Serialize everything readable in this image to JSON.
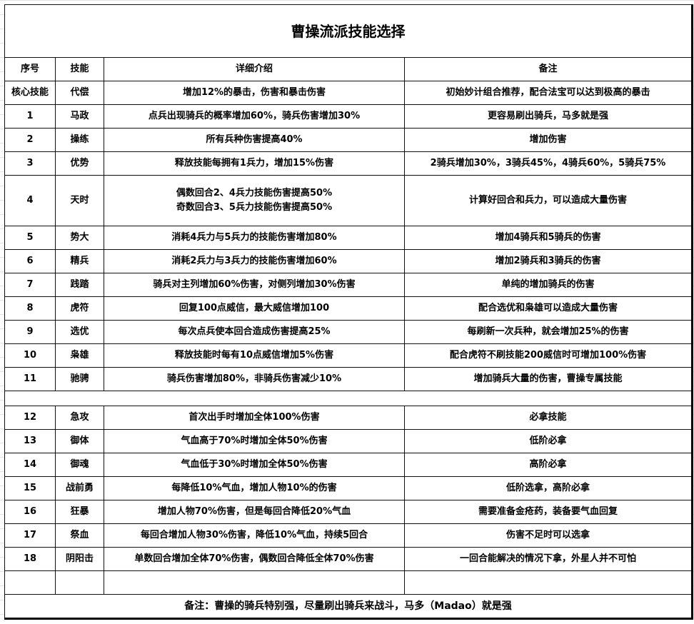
{
  "title": "曹操流派技能选择",
  "headers": [
    "序号",
    "技能",
    "详细介绍",
    "备注"
  ],
  "rows_a": [
    {
      "no": "核心技能",
      "skill": "代偿",
      "desc": "增加12%的暴击，伤害和暴击伤害",
      "note": "初始妙计组合推荐，配合法宝可以达到极高的暴击"
    },
    {
      "no": "1",
      "skill": "马政",
      "desc": "点兵出现骑兵的概率增加60%，骑兵伤害增加30%",
      "note": "更容易刷出骑兵，马多就是强"
    },
    {
      "no": "2",
      "skill": "操练",
      "desc": "所有兵种伤害提高40%",
      "note": "增加伤害"
    },
    {
      "no": "3",
      "skill": "优势",
      "desc": "释放技能每拥有1兵力，增加15%伤害",
      "note": "2骑兵增加30%，3骑兵45%，4骑兵60%，5骑兵75%"
    }
  ],
  "row_4": {
    "no": "4",
    "skill": "天时",
    "desc_line1": "偶数回合2、4兵力技能伤害提高50%",
    "desc_line2": "奇数回合3、5兵力技能伤害提高50%",
    "note": "计算好回合和兵力，可以造成大量伤害"
  },
  "rows_b": [
    {
      "no": "5",
      "skill": "势大",
      "desc": "消耗4兵力与5兵力的技能伤害增加80%",
      "note": "增加4骑兵和5骑兵的伤害"
    },
    {
      "no": "6",
      "skill": "精兵",
      "desc": "消耗2兵力与3兵力的技能伤害增加60%",
      "note": "增加2骑兵和3骑兵的伤害"
    },
    {
      "no": "7",
      "skill": "践踏",
      "desc": "骑兵对主列增加60%伤害，对侧列增加30%伤害",
      "note": "单纯的增加骑兵的伤害"
    },
    {
      "no": "8",
      "skill": "虎符",
      "desc": "回复100点威信，最大威信增加100",
      "note": "配合选优和枭雄可以造成大量伤害"
    },
    {
      "no": "9",
      "skill": "选优",
      "desc": "每次点兵使本回合造成伤害提高25%",
      "note": "每刷新一次兵种，就会增加25%的伤害"
    },
    {
      "no": "10",
      "skill": "枭雄",
      "desc": "释放技能时每有10点威信增加5%伤害",
      "note": "配合虎符不刷技能200威信时可增加100%伤害"
    },
    {
      "no": "11",
      "skill": "驰骋",
      "desc": "骑兵伤害增加80%，非骑兵伤害减少10%",
      "note": "增加骑兵大量的伤害，曹操专属技能"
    }
  ],
  "rows_c": [
    {
      "no": "12",
      "skill": "急攻",
      "desc": "首次出手时增加全体100%伤害",
      "note": "必拿技能"
    },
    {
      "no": "13",
      "skill": "御体",
      "desc": "气血高于70%时增加全体50%伤害",
      "note": "低阶必拿"
    },
    {
      "no": "14",
      "skill": "御魂",
      "desc": "气血低于30%时增加全体50%伤害",
      "note": "高阶必拿"
    },
    {
      "no": "15",
      "skill": "战前勇",
      "desc": "每降低10%气血，增加人物10%的伤害",
      "note": "低阶选拿，高阶必拿"
    },
    {
      "no": "16",
      "skill": "狂暴",
      "desc": "增加人物70%伤害，但是每回合降低20%气血",
      "note": "需要准备金疮药，装备要气血回复"
    },
    {
      "no": "17",
      "skill": "祭血",
      "desc": "每回合增加人物30%伤害，降低10%气血，持续5回合",
      "note": "伤害不足时可以选拿"
    },
    {
      "no": "18",
      "skill": "阴阳击",
      "desc": "单数回合增加全体70%伤害，偶数回合降低全体70%伤害",
      "note": "一回合能解决的情况下拿，外星人并不可怕"
    }
  ],
  "footer": "备注：曹操的骑兵特别强，尽量刷出骑兵来战斗，马多（Madao）就是强"
}
